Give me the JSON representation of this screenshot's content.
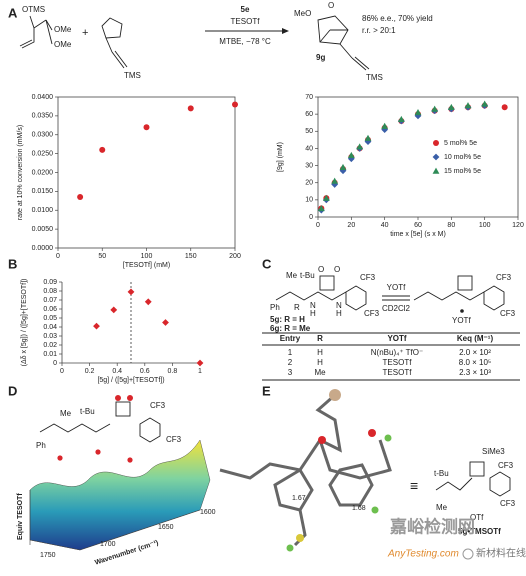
{
  "panel_labels": [
    "A",
    "B",
    "C",
    "D",
    "E"
  ],
  "scheme_a": {
    "reagent1": [
      "OTMS",
      "OMe",
      "OMe"
    ],
    "plus": "+",
    "tms_1": "TMS",
    "catalyst": "5e",
    "additive": "TESOTf",
    "conditions": "MTBE, −78 °C",
    "meo": "MeO",
    "product_o": "O",
    "result": "86% e.e., 70% yield",
    "rr": "r.r. > 20:1",
    "product": "9g",
    "tms_2": "TMS"
  },
  "scheme_c": {
    "me": "Me",
    "tbu": "t-Bu",
    "ph": "Ph",
    "r": "R",
    "nh": [
      "N",
      "H",
      "N",
      "H"
    ],
    "o": [
      "O",
      "O"
    ],
    "cf3": [
      "CF3",
      "CF3",
      "CF3",
      "CF3"
    ],
    "compound_1": "5g: R = H",
    "compound_2": "6g: R = Me",
    "reagent": "YOTf",
    "solvent": "CD2Cl2",
    "bound": "YOTf"
  },
  "table": {
    "headers": [
      "Entry",
      "R",
      "YOTf",
      "Keq (M⁻¹)"
    ],
    "rows": [
      [
        "1",
        "H",
        "N(nBu)₄⁺ TfO⁻",
        "2.0 × 10²"
      ],
      [
        "2",
        "H",
        "TESOTf",
        "8.0 × 10⁵"
      ],
      [
        "3",
        "Me",
        "TESOTf",
        "2.3 × 10³"
      ]
    ]
  },
  "panel_d": {
    "tbu": "t-Bu",
    "me": "Me",
    "ph": "Ph",
    "cf3": [
      "CF3",
      "CF3"
    ],
    "x_title": "Wavenumber (cm⁻¹)",
    "y_title": "Equiv TESOTf",
    "x_ticks": [
      "1750",
      "1700",
      "1650",
      "1600"
    ]
  },
  "panel_e": {
    "dist_1": "1.67",
    "dist_2": "1.68",
    "equiv": "≡",
    "sime3": "SiMe3",
    "tbu": "t-Bu",
    "me": "Me",
    "cf3": [
      "CF3",
      "CF3"
    ],
    "otf": "OTf",
    "label": "5g•TMSOTf"
  },
  "watermark": {
    "cn": "嘉峪检测网",
    "en": "AnyTesting.com",
    "cn2": "新材料在线"
  },
  "chart_data": [
    {
      "type": "scatter",
      "xlabel": "[TESOTf] (mM)",
      "ylabel": "rate at 10% conversion (mM/s)",
      "x": [
        25,
        50,
        100,
        150,
        200
      ],
      "values": [
        0.0135,
        0.026,
        0.032,
        0.037,
        0.038
      ],
      "color": "#d9262b",
      "marker": "circle",
      "xlim": [
        0,
        200
      ],
      "xticks": [
        0,
        50,
        100,
        150,
        200
      ],
      "ylim": [
        0,
        0.04
      ],
      "yticks": [
        {
          "value": 0,
          "label": "0.0000"
        },
        {
          "value": 0.005,
          "label": "0.0050"
        },
        {
          "value": 0.01,
          "label": "0.0100"
        },
        {
          "value": 0.015,
          "label": "0.0150"
        },
        {
          "value": 0.02,
          "label": "0.0200"
        },
        {
          "value": 0.025,
          "label": "0.0250"
        },
        {
          "value": 0.03,
          "label": "0.0300"
        },
        {
          "value": 0.035,
          "label": "0.0350"
        },
        {
          "value": 0.04,
          "label": "0.0400"
        }
      ],
      "frame": true
    },
    {
      "type": "scatter",
      "xlabel": "time x [5e] (s x M)",
      "ylabel": "[9g] (mM)",
      "x": [
        2,
        5,
        10,
        15,
        20,
        25,
        30,
        40,
        50,
        60,
        70,
        80,
        90,
        100,
        112
      ],
      "series": [
        {
          "name": "5 mol% 5e",
          "color": "#d9262b",
          "marker": "circle",
          "values": [
            5,
            11,
            20,
            28,
            35,
            40,
            45,
            52,
            56,
            60,
            62,
            63,
            64,
            65,
            64
          ]
        },
        {
          "name": "10 mol% 5e",
          "color": "#3a5fa8",
          "marker": "diamond",
          "values": [
            4,
            10,
            19,
            27,
            34,
            40,
            44,
            51,
            56,
            59,
            62,
            63,
            64,
            65,
            null
          ]
        },
        {
          "name": "15 mol% 5e",
          "color": "#2e8b57",
          "marker": "triangle",
          "values": [
            5,
            11,
            21,
            29,
            36,
            41,
            46,
            53,
            57,
            61,
            63,
            64,
            65,
            66,
            null
          ]
        }
      ],
      "xlim": [
        0,
        120
      ],
      "xticks": [
        0,
        20,
        40,
        60,
        80,
        100,
        120
      ],
      "ylim": [
        0,
        70
      ],
      "yticks": [
        0,
        10,
        20,
        30,
        40,
        50,
        60,
        70
      ],
      "frame": true,
      "legend": "center right"
    },
    {
      "type": "scatter",
      "xlabel": "[5g] / ([5g]+[TESOTf])",
      "ylabel": "(Δδ x [5g]) / ([5g]+[TESOTf])",
      "x": [
        0.25,
        0.375,
        0.5,
        0.625,
        0.75,
        1
      ],
      "values": [
        0.041,
        0.059,
        0.079,
        0.068,
        0.045,
        0
      ],
      "color": "#d9262b",
      "marker": "diamond",
      "xlim": [
        0,
        1
      ],
      "xticks": [
        0,
        0.2,
        0.4,
        0.6,
        0.8,
        1
      ],
      "ylim": [
        0,
        0.09
      ],
      "yticks": [
        0,
        0.01,
        0.02,
        0.03,
        0.04,
        0.05,
        0.06,
        0.07,
        0.08,
        0.09
      ],
      "frame": false,
      "vline": 0.5
    }
  ]
}
